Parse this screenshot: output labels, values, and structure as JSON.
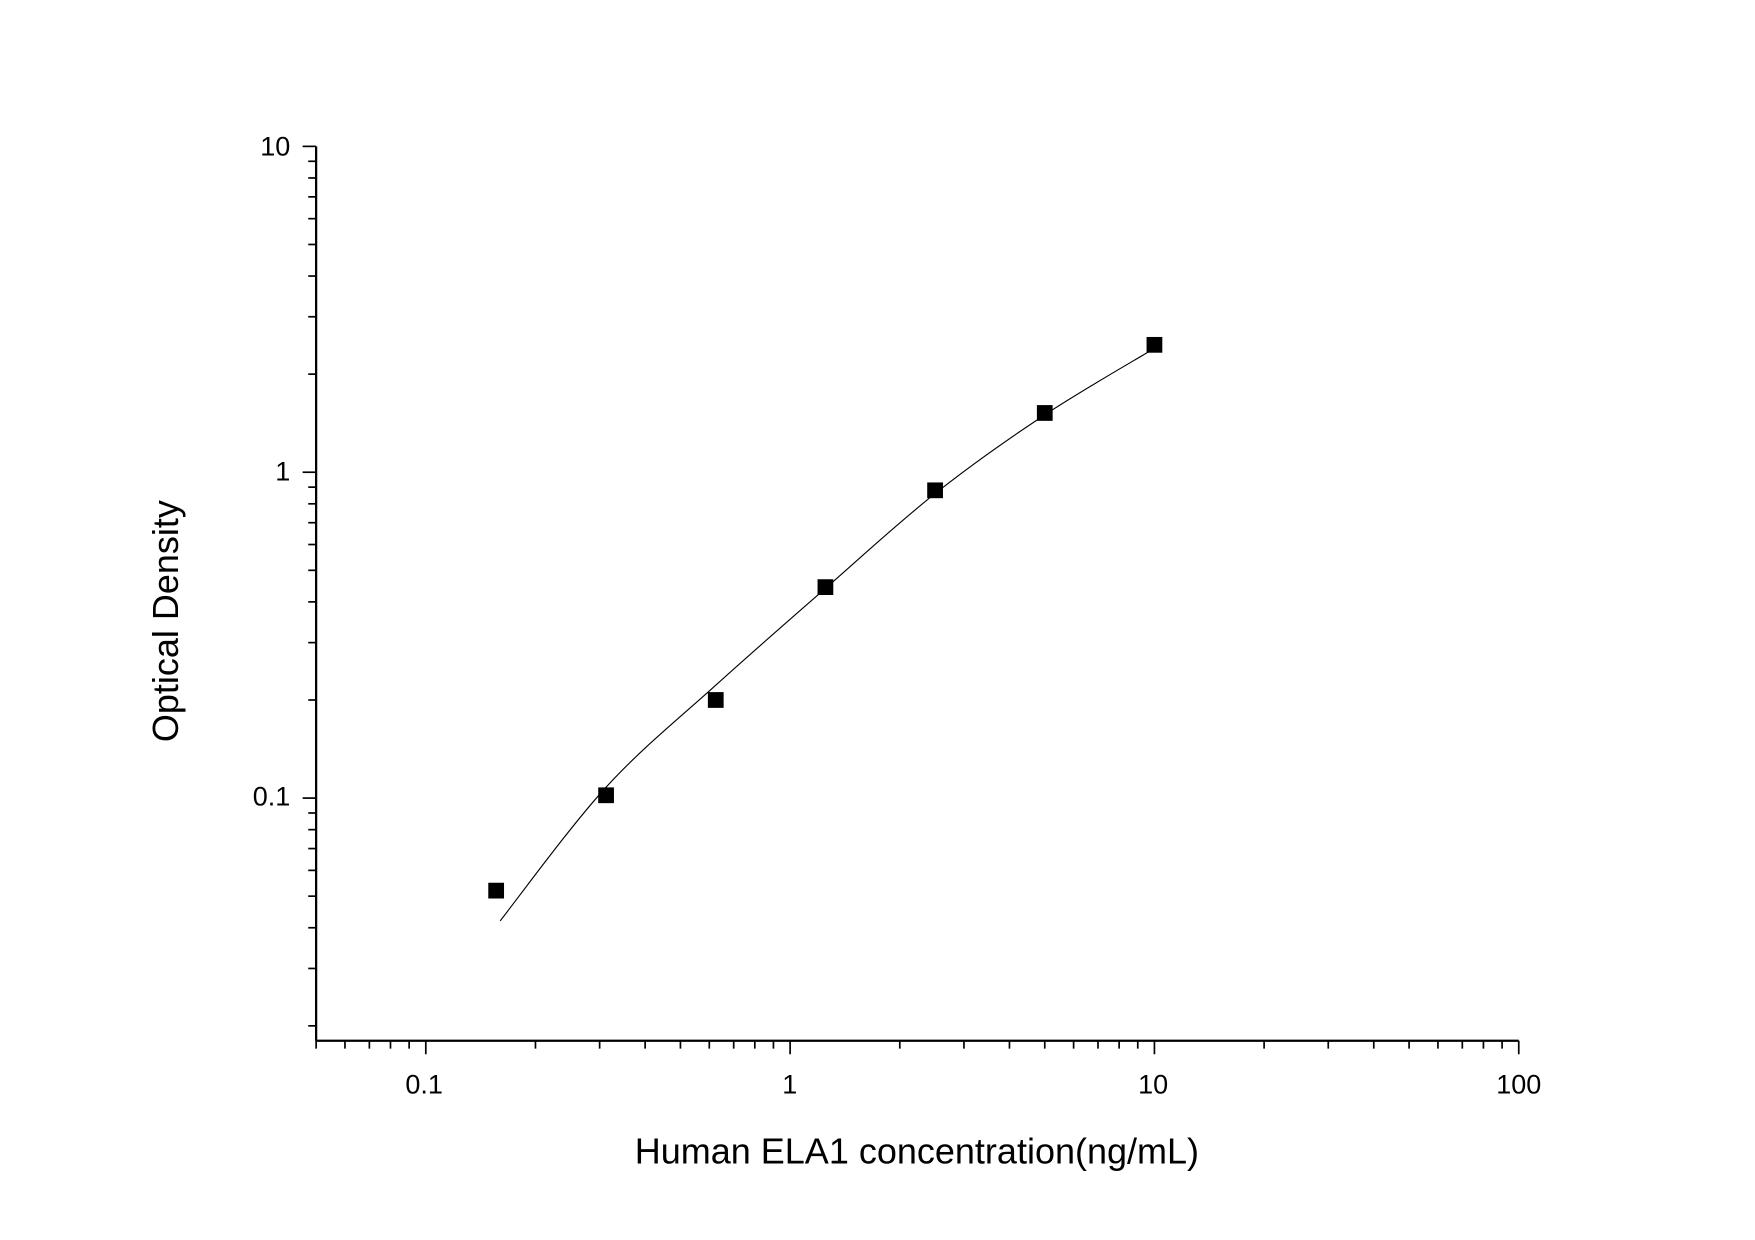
{
  "chart_data": {
    "type": "scatter",
    "title": "",
    "xlabel": "Human ELA1 concentration(ng/mL)",
    "ylabel": "Optical Density",
    "xscale": "log",
    "yscale": "log",
    "xlim": [
      0.05,
      100
    ],
    "ylim": [
      0.018,
      10
    ],
    "xticks": [
      "0.1",
      "1",
      "10",
      "100"
    ],
    "yticks": [
      "0.1",
      "1",
      "10"
    ],
    "grid": false,
    "legend": "none",
    "series": [
      {
        "type": "scatter",
        "marker": "square",
        "color": "#000000",
        "x": [
          0.156,
          0.3125,
          0.625,
          1.25,
          2.5,
          5,
          10
        ],
        "y": [
          0.052,
          0.102,
          0.2,
          0.444,
          0.88,
          1.52,
          2.46
        ]
      },
      {
        "type": "line",
        "color": "#000000",
        "x": [
          0.16,
          0.3125,
          0.625,
          1.25,
          2.5,
          5,
          10
        ],
        "y": [
          0.042,
          0.108,
          0.222,
          0.44,
          0.86,
          1.5,
          2.4
        ]
      }
    ]
  }
}
